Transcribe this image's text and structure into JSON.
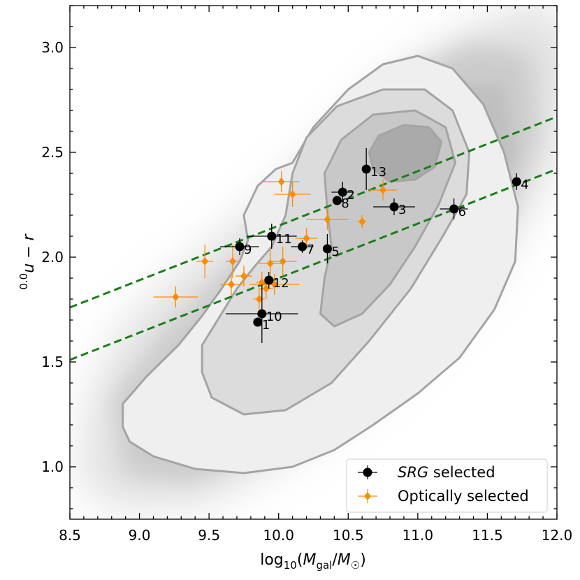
{
  "chart_data": {
    "type": "scatter",
    "xlabel": "log10(Mgal/M☉)",
    "xlabel_parts": {
      "prefix": "log",
      "sub": "10",
      "open": "(",
      "var_main": "M",
      "var_sub": "gal",
      "sep": "/",
      "var2_main": "M",
      "var2_sub": "☉",
      "close": ")"
    },
    "ylabel": "0.0u − r",
    "ylabel_parts": {
      "sup": "0.0",
      "main": "u − r"
    },
    "xlim": [
      8.5,
      12.0
    ],
    "ylim": [
      0.75,
      3.2
    ],
    "xticks": [
      8.5,
      9.0,
      9.5,
      10.0,
      10.5,
      11.0,
      11.5,
      12.0
    ],
    "xtick_labels": [
      "8.5",
      "9.0",
      "9.5",
      "10.0",
      "10.5",
      "11.0",
      "11.5",
      "12.0"
    ],
    "yticks": [
      1.0,
      1.5,
      2.0,
      2.5,
      3.0
    ],
    "ytick_labels": [
      "1.0",
      "1.5",
      "2.0",
      "2.5",
      "3.0"
    ],
    "background": "grey density cloud of the galaxy population with filled contours",
    "contour_levels": [
      {
        "level": 1,
        "fill": "#efefef",
        "points": [
          [
            8.88,
            1.19
          ],
          [
            8.88,
            1.3
          ],
          [
            9.05,
            1.43
          ],
          [
            9.28,
            1.58
          ],
          [
            9.45,
            1.72
          ],
          [
            9.58,
            1.84
          ],
          [
            9.72,
            1.98
          ],
          [
            9.78,
            2.08
          ],
          [
            9.75,
            2.2
          ],
          [
            9.85,
            2.34
          ],
          [
            9.98,
            2.42
          ],
          [
            10.1,
            2.45
          ],
          [
            10.25,
            2.62
          ],
          [
            10.5,
            2.8
          ],
          [
            10.75,
            2.92
          ],
          [
            11.0,
            2.96
          ],
          [
            11.25,
            2.9
          ],
          [
            11.47,
            2.73
          ],
          [
            11.62,
            2.5
          ],
          [
            11.72,
            2.24
          ],
          [
            11.7,
            1.98
          ],
          [
            11.55,
            1.75
          ],
          [
            11.3,
            1.52
          ],
          [
            11.0,
            1.35
          ],
          [
            10.68,
            1.2
          ],
          [
            10.4,
            1.08
          ],
          [
            10.1,
            1.0
          ],
          [
            9.75,
            0.97
          ],
          [
            9.4,
            0.99
          ],
          [
            9.1,
            1.05
          ],
          [
            8.93,
            1.12
          ]
        ]
      },
      {
        "level": 2,
        "fill": "#dcdcdc",
        "points": [
          [
            9.45,
            1.58
          ],
          [
            9.58,
            1.72
          ],
          [
            9.7,
            1.85
          ],
          [
            9.82,
            1.95
          ],
          [
            9.95,
            2.05
          ],
          [
            10.05,
            2.2
          ],
          [
            10.1,
            2.4
          ],
          [
            10.2,
            2.57
          ],
          [
            10.42,
            2.72
          ],
          [
            10.75,
            2.8
          ],
          [
            11.05,
            2.8
          ],
          [
            11.25,
            2.7
          ],
          [
            11.37,
            2.5
          ],
          [
            11.35,
            2.3
          ],
          [
            11.18,
            2.1
          ],
          [
            10.95,
            1.85
          ],
          [
            10.65,
            1.6
          ],
          [
            10.38,
            1.4
          ],
          [
            10.05,
            1.27
          ],
          [
            9.75,
            1.25
          ],
          [
            9.52,
            1.33
          ],
          [
            9.45,
            1.45
          ]
        ]
      },
      {
        "level": 3,
        "fill": "#c8c8c8",
        "points": [
          [
            10.3,
            1.73
          ],
          [
            10.33,
            1.9
          ],
          [
            10.38,
            2.05
          ],
          [
            10.35,
            2.22
          ],
          [
            10.33,
            2.4
          ],
          [
            10.45,
            2.56
          ],
          [
            10.68,
            2.68
          ],
          [
            10.98,
            2.7
          ],
          [
            11.2,
            2.62
          ],
          [
            11.27,
            2.45
          ],
          [
            11.15,
            2.25
          ],
          [
            10.98,
            2.05
          ],
          [
            10.8,
            1.87
          ],
          [
            10.6,
            1.73
          ],
          [
            10.4,
            1.67
          ]
        ]
      },
      {
        "level": 4,
        "fill": "#aaaaaa",
        "points": [
          [
            10.65,
            2.5
          ],
          [
            10.72,
            2.58
          ],
          [
            10.9,
            2.63
          ],
          [
            11.08,
            2.62
          ],
          [
            11.17,
            2.55
          ],
          [
            11.12,
            2.43
          ],
          [
            10.98,
            2.37
          ],
          [
            10.8,
            2.36
          ],
          [
            10.68,
            2.42
          ]
        ]
      }
    ],
    "lines": [
      {
        "name": "upper green-valley boundary",
        "color": "#1a7f1a",
        "style": "dashed",
        "x": [
          8.5,
          12.0
        ],
        "y": [
          1.76,
          2.67
        ]
      },
      {
        "name": "lower green-valley boundary",
        "color": "#1a7f1a",
        "style": "dashed",
        "x": [
          8.5,
          12.0
        ],
        "y": [
          1.51,
          2.42
        ]
      }
    ],
    "series": [
      {
        "name": "SRG selected",
        "legend": {
          "italic": "SRG",
          "rest": " selected"
        },
        "color": "#000000",
        "marker": "circle",
        "points": [
          {
            "label": "1",
            "x": 9.85,
            "y": 1.69,
            "xerr": 0.0,
            "yerr": 0.0
          },
          {
            "label": "2",
            "x": 10.46,
            "y": 2.31,
            "xerr": 0.08,
            "yerr": 0.05
          },
          {
            "label": "3",
            "x": 10.83,
            "y": 2.24,
            "xerr": 0.15,
            "yerr": 0.04
          },
          {
            "label": "4",
            "x": 11.71,
            "y": 2.36,
            "xerr": 0.0,
            "yerr": 0.04
          },
          {
            "label": "5",
            "x": 10.35,
            "y": 2.04,
            "xerr": 0.0,
            "yerr": 0.07
          },
          {
            "label": "6",
            "x": 11.26,
            "y": 2.23,
            "xerr": 0.1,
            "yerr": 0.05
          },
          {
            "label": "7",
            "x": 10.17,
            "y": 2.05,
            "xerr": 0.08,
            "yerr": 0.03
          },
          {
            "label": "8",
            "x": 10.42,
            "y": 2.27,
            "xerr": 0.0,
            "yerr": 0.0
          },
          {
            "label": "9",
            "x": 9.72,
            "y": 2.05,
            "xerr": 0.14,
            "yerr": 0.04
          },
          {
            "label": "10",
            "x": 9.88,
            "y": 1.73,
            "xerr": 0.26,
            "yerr": 0.14
          },
          {
            "label": "11",
            "x": 9.95,
            "y": 2.1,
            "xerr": 0.18,
            "yerr": 0.06
          },
          {
            "label": "12",
            "x": 9.93,
            "y": 1.89,
            "xerr": 0.03,
            "yerr": 0.04
          },
          {
            "label": "13",
            "x": 10.63,
            "y": 2.42,
            "xerr": 0.0,
            "yerr": 0.1
          }
        ]
      },
      {
        "name": "Optically selected",
        "legend": {
          "italic": "",
          "rest": "Optically selected"
        },
        "color": "#ff8c00",
        "marker": "diamond",
        "points": [
          {
            "x": 9.26,
            "y": 1.81,
            "xerr": 0.16,
            "yerr": 0.05
          },
          {
            "x": 9.47,
            "y": 1.98,
            "xerr": 0.06,
            "yerr": 0.08
          },
          {
            "x": 9.67,
            "y": 1.98,
            "xerr": 0.05,
            "yerr": 0.08
          },
          {
            "x": 9.66,
            "y": 1.87,
            "xerr": 0.08,
            "yerr": 0.05
          },
          {
            "x": 9.75,
            "y": 1.91,
            "xerr": 0.06,
            "yerr": 0.05
          },
          {
            "x": 9.86,
            "y": 1.8,
            "xerr": 0.04,
            "yerr": 0.05
          },
          {
            "x": 9.88,
            "y": 1.88,
            "xerr": 0.04,
            "yerr": 0.05
          },
          {
            "x": 9.91,
            "y": 1.85,
            "xerr": 0.05,
            "yerr": 0.05
          },
          {
            "x": 9.97,
            "y": 1.87,
            "xerr": 0.18,
            "yerr": 0.05
          },
          {
            "x": 9.94,
            "y": 1.97,
            "xerr": 0.08,
            "yerr": 0.07
          },
          {
            "x": 10.03,
            "y": 1.98,
            "xerr": 0.1,
            "yerr": 0.07
          },
          {
            "x": 10.02,
            "y": 2.36,
            "xerr": 0.13,
            "yerr": 0.05
          },
          {
            "x": 10.1,
            "y": 2.3,
            "xerr": 0.13,
            "yerr": 0.06
          },
          {
            "x": 10.2,
            "y": 2.09,
            "xerr": 0.08,
            "yerr": 0.05
          },
          {
            "x": 10.35,
            "y": 2.18,
            "xerr": 0.15,
            "yerr": 0.05
          },
          {
            "x": 10.6,
            "y": 2.17,
            "xerr": 0.03,
            "yerr": 0.03
          },
          {
            "x": 10.75,
            "y": 2.32,
            "xerr": 0.1,
            "yerr": 0.05
          }
        ]
      }
    ],
    "legend_position": "lower-right"
  }
}
